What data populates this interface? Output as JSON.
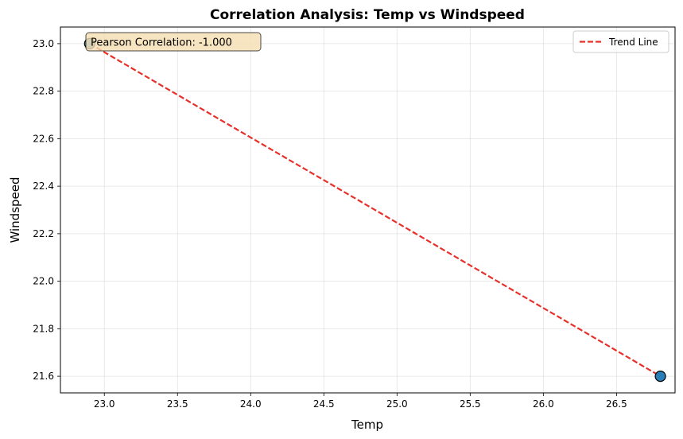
{
  "chart_data": {
    "type": "scatter",
    "title": "Correlation Analysis: Temp vs Windspeed",
    "xlabel": "Temp",
    "ylabel": "Windspeed",
    "xlim": [
      22.7,
      26.9
    ],
    "ylim": [
      21.53,
      23.07
    ],
    "xticks": [
      "23.0",
      "23.5",
      "24.0",
      "24.5",
      "25.0",
      "25.5",
      "26.0",
      "26.5"
    ],
    "yticks": [
      "21.6",
      "21.8",
      "22.0",
      "22.2",
      "22.4",
      "22.6",
      "22.8",
      "23.0"
    ],
    "grid": true,
    "legend_position": "top-right",
    "points": [
      {
        "x": 22.9,
        "y": 23.0
      },
      {
        "x": 26.8,
        "y": 21.6
      }
    ],
    "trend_line": {
      "name": "Trend Line",
      "x": [
        22.9,
        26.8
      ],
      "y": [
        23.0,
        21.6
      ],
      "color": "#e8302a",
      "style": "dashed"
    },
    "annotation": "Pearson Correlation: -1.000",
    "point_color": "#1f77b4"
  }
}
